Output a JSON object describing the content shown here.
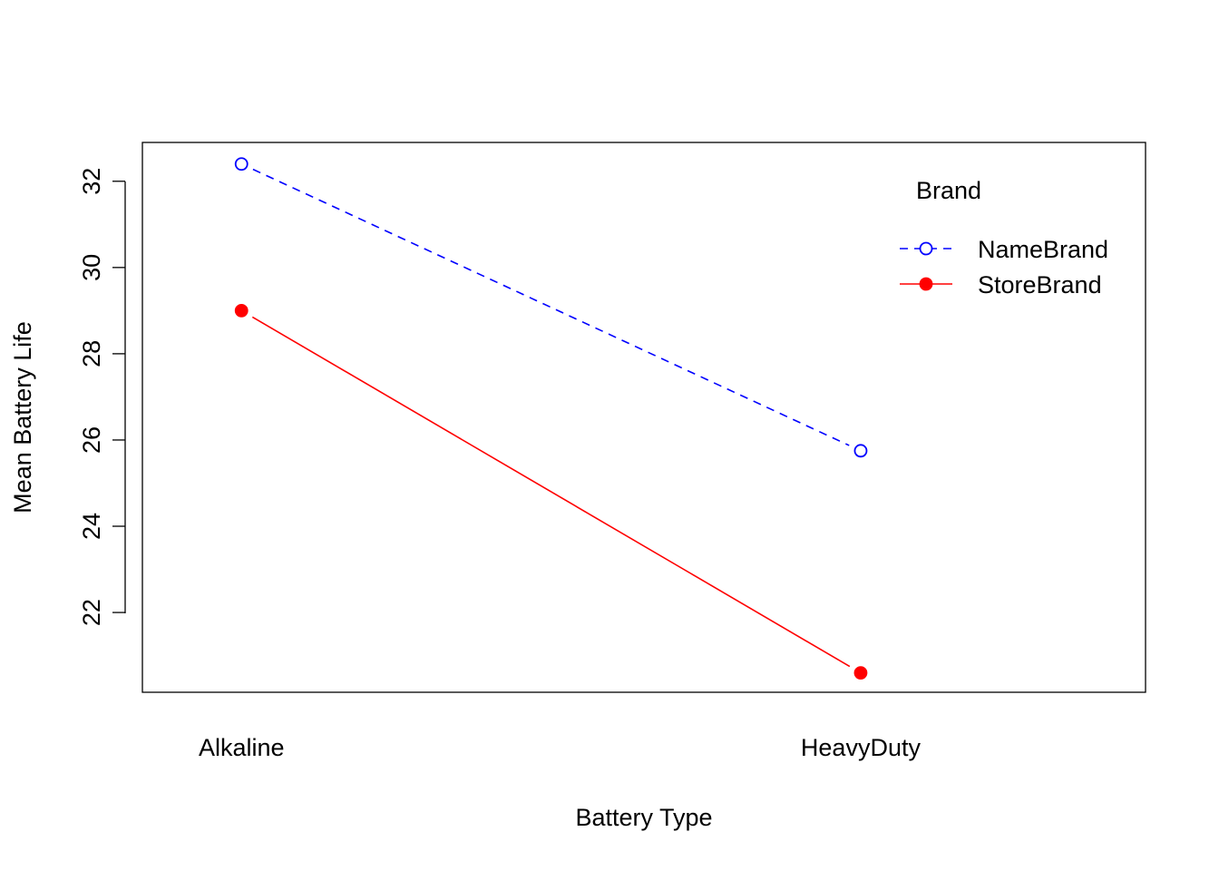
{
  "chart_data": {
    "type": "line",
    "title": "",
    "xlabel": "Battery Type",
    "ylabel": "Mean Battery Life",
    "categories": [
      "Alkaline",
      "HeavyDuty"
    ],
    "series": [
      {
        "name": "NameBrand",
        "values": [
          32.4,
          25.75
        ],
        "color": "#0000FF",
        "line_style": "dashed",
        "marker": "open-circle"
      },
      {
        "name": "StoreBrand",
        "values": [
          29.0,
          20.6
        ],
        "color": "#FF0000",
        "line_style": "solid",
        "marker": "filled-circle"
      }
    ],
    "yticks": [
      22,
      24,
      26,
      28,
      30,
      32
    ],
    "ylim": [
      20.15,
      32.9
    ],
    "x_range": [
      0.84,
      2.46
    ],
    "grid": false,
    "legend": {
      "title": "Brand",
      "placement": "top-right"
    }
  }
}
